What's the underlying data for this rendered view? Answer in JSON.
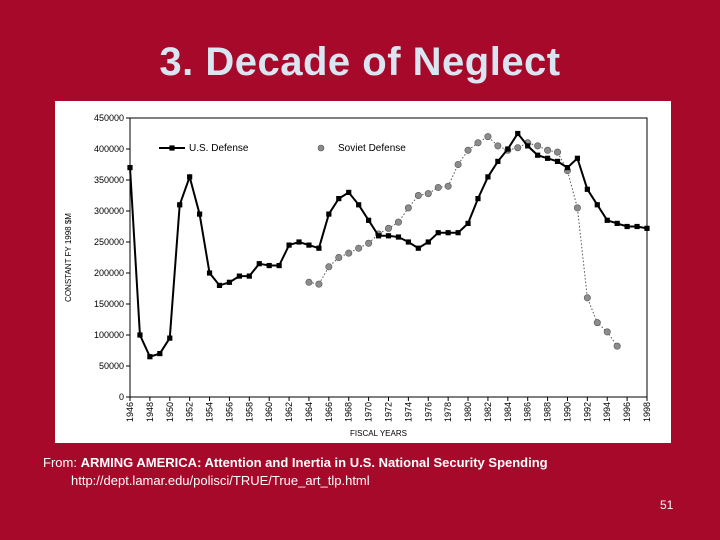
{
  "slide": {
    "title": "3. Decade of Neglect",
    "source_prefix": "From: ",
    "source_title": "ARMING AMERICA: Attention and Inertia in U.S. National Security Spending",
    "source_url": "http://dept.lamar.edu/polisci/TRUE/True_art_tlp.html",
    "page_number": "51"
  },
  "colors": {
    "background": "#a6092a",
    "title": "#d9e6f2",
    "us_series": "#000000",
    "soviet_series": "#8c8c8c"
  },
  "chart_data": {
    "type": "line",
    "title": "",
    "xlabel": "FISCAL YEARS",
    "ylabel": "CONSTANT FY 1998 $M",
    "xlim": [
      1946,
      1998
    ],
    "ylim": [
      0,
      450000
    ],
    "y_ticks": [
      0,
      50000,
      100000,
      150000,
      200000,
      250000,
      300000,
      350000,
      400000,
      450000
    ],
    "x_ticks": [
      1946,
      1948,
      1950,
      1952,
      1954,
      1956,
      1958,
      1960,
      1962,
      1964,
      1966,
      1968,
      1970,
      1972,
      1974,
      1976,
      1978,
      1980,
      1982,
      1984,
      1986,
      1988,
      1990,
      1992,
      1994,
      1996,
      1998
    ],
    "legend_position": "top",
    "series": [
      {
        "name": "U.S. Defense",
        "x": [
          1946,
          1947,
          1948,
          1949,
          1950,
          1951,
          1952,
          1953,
          1954,
          1955,
          1956,
          1957,
          1958,
          1959,
          1960,
          1961,
          1962,
          1963,
          1964,
          1965,
          1966,
          1967,
          1968,
          1969,
          1970,
          1971,
          1972,
          1973,
          1974,
          1975,
          1976,
          1977,
          1978,
          1979,
          1980,
          1981,
          1982,
          1983,
          1984,
          1985,
          1986,
          1987,
          1988,
          1989,
          1990,
          1991,
          1992,
          1993,
          1994,
          1995,
          1996,
          1997,
          1998
        ],
        "values": [
          370000,
          100000,
          65000,
          70000,
          95000,
          310000,
          355000,
          295000,
          200000,
          180000,
          185000,
          195000,
          195000,
          215000,
          212000,
          212000,
          245000,
          250000,
          245000,
          240000,
          295000,
          320000,
          330000,
          310000,
          285000,
          260000,
          260000,
          258000,
          250000,
          240000,
          250000,
          265000,
          265000,
          265000,
          280000,
          320000,
          355000,
          380000,
          400000,
          425000,
          405000,
          390000,
          385000,
          380000,
          370000,
          385000,
          335000,
          310000,
          285000,
          280000,
          275000,
          275000,
          272000
        ],
        "marker": "square"
      },
      {
        "name": "Soviet Defense",
        "x": [
          1964,
          1965,
          1966,
          1967,
          1968,
          1969,
          1970,
          1971,
          1972,
          1973,
          1974,
          1975,
          1976,
          1977,
          1978,
          1979,
          1980,
          1981,
          1982,
          1983,
          1984,
          1985,
          1986,
          1987,
          1988,
          1989,
          1990,
          1991,
          1992,
          1993,
          1994,
          1995
        ],
        "values": [
          185000,
          182000,
          210000,
          225000,
          232000,
          240000,
          248000,
          263000,
          272000,
          282000,
          305000,
          325000,
          328000,
          338000,
          340000,
          375000,
          398000,
          410000,
          420000,
          405000,
          398000,
          402000,
          410000,
          405000,
          398000,
          395000,
          365000,
          305000,
          160000,
          120000,
          105000,
          82000
        ],
        "marker": "circle"
      }
    ]
  }
}
